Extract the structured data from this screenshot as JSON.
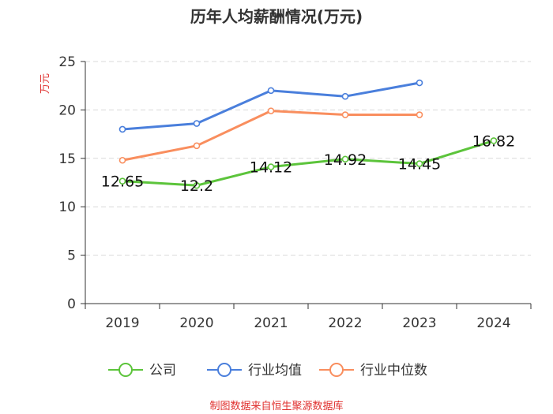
{
  "chart_data": {
    "type": "line",
    "title": "历年人均薪酬情况(万元)",
    "ylabel": "万元",
    "xlabel": "",
    "categories": [
      "2019",
      "2020",
      "2021",
      "2022",
      "2023",
      "2024"
    ],
    "ylim": [
      0,
      25
    ],
    "yticks": [
      "0",
      "5",
      "10",
      "15",
      "20",
      "25"
    ],
    "grid": true,
    "legend_position": "bottom-center",
    "series": [
      {
        "name": "公司",
        "color": "#5cc43b",
        "values": [
          12.65,
          12.2,
          14.12,
          14.92,
          14.45,
          16.82
        ],
        "labels": [
          "12.65",
          "12.2",
          "14.12",
          "14.92",
          "14.45",
          "16.82"
        ]
      },
      {
        "name": "行业均值",
        "color": "#4a7fdc",
        "values": [
          18.0,
          18.6,
          22.0,
          21.4,
          22.8,
          null
        ]
      },
      {
        "name": "行业中位数",
        "color": "#f98e5e",
        "values": [
          14.8,
          16.3,
          19.9,
          19.5,
          19.5,
          null
        ]
      }
    ]
  },
  "footer": {
    "source": "制图数据来自恒生聚源数据库"
  }
}
